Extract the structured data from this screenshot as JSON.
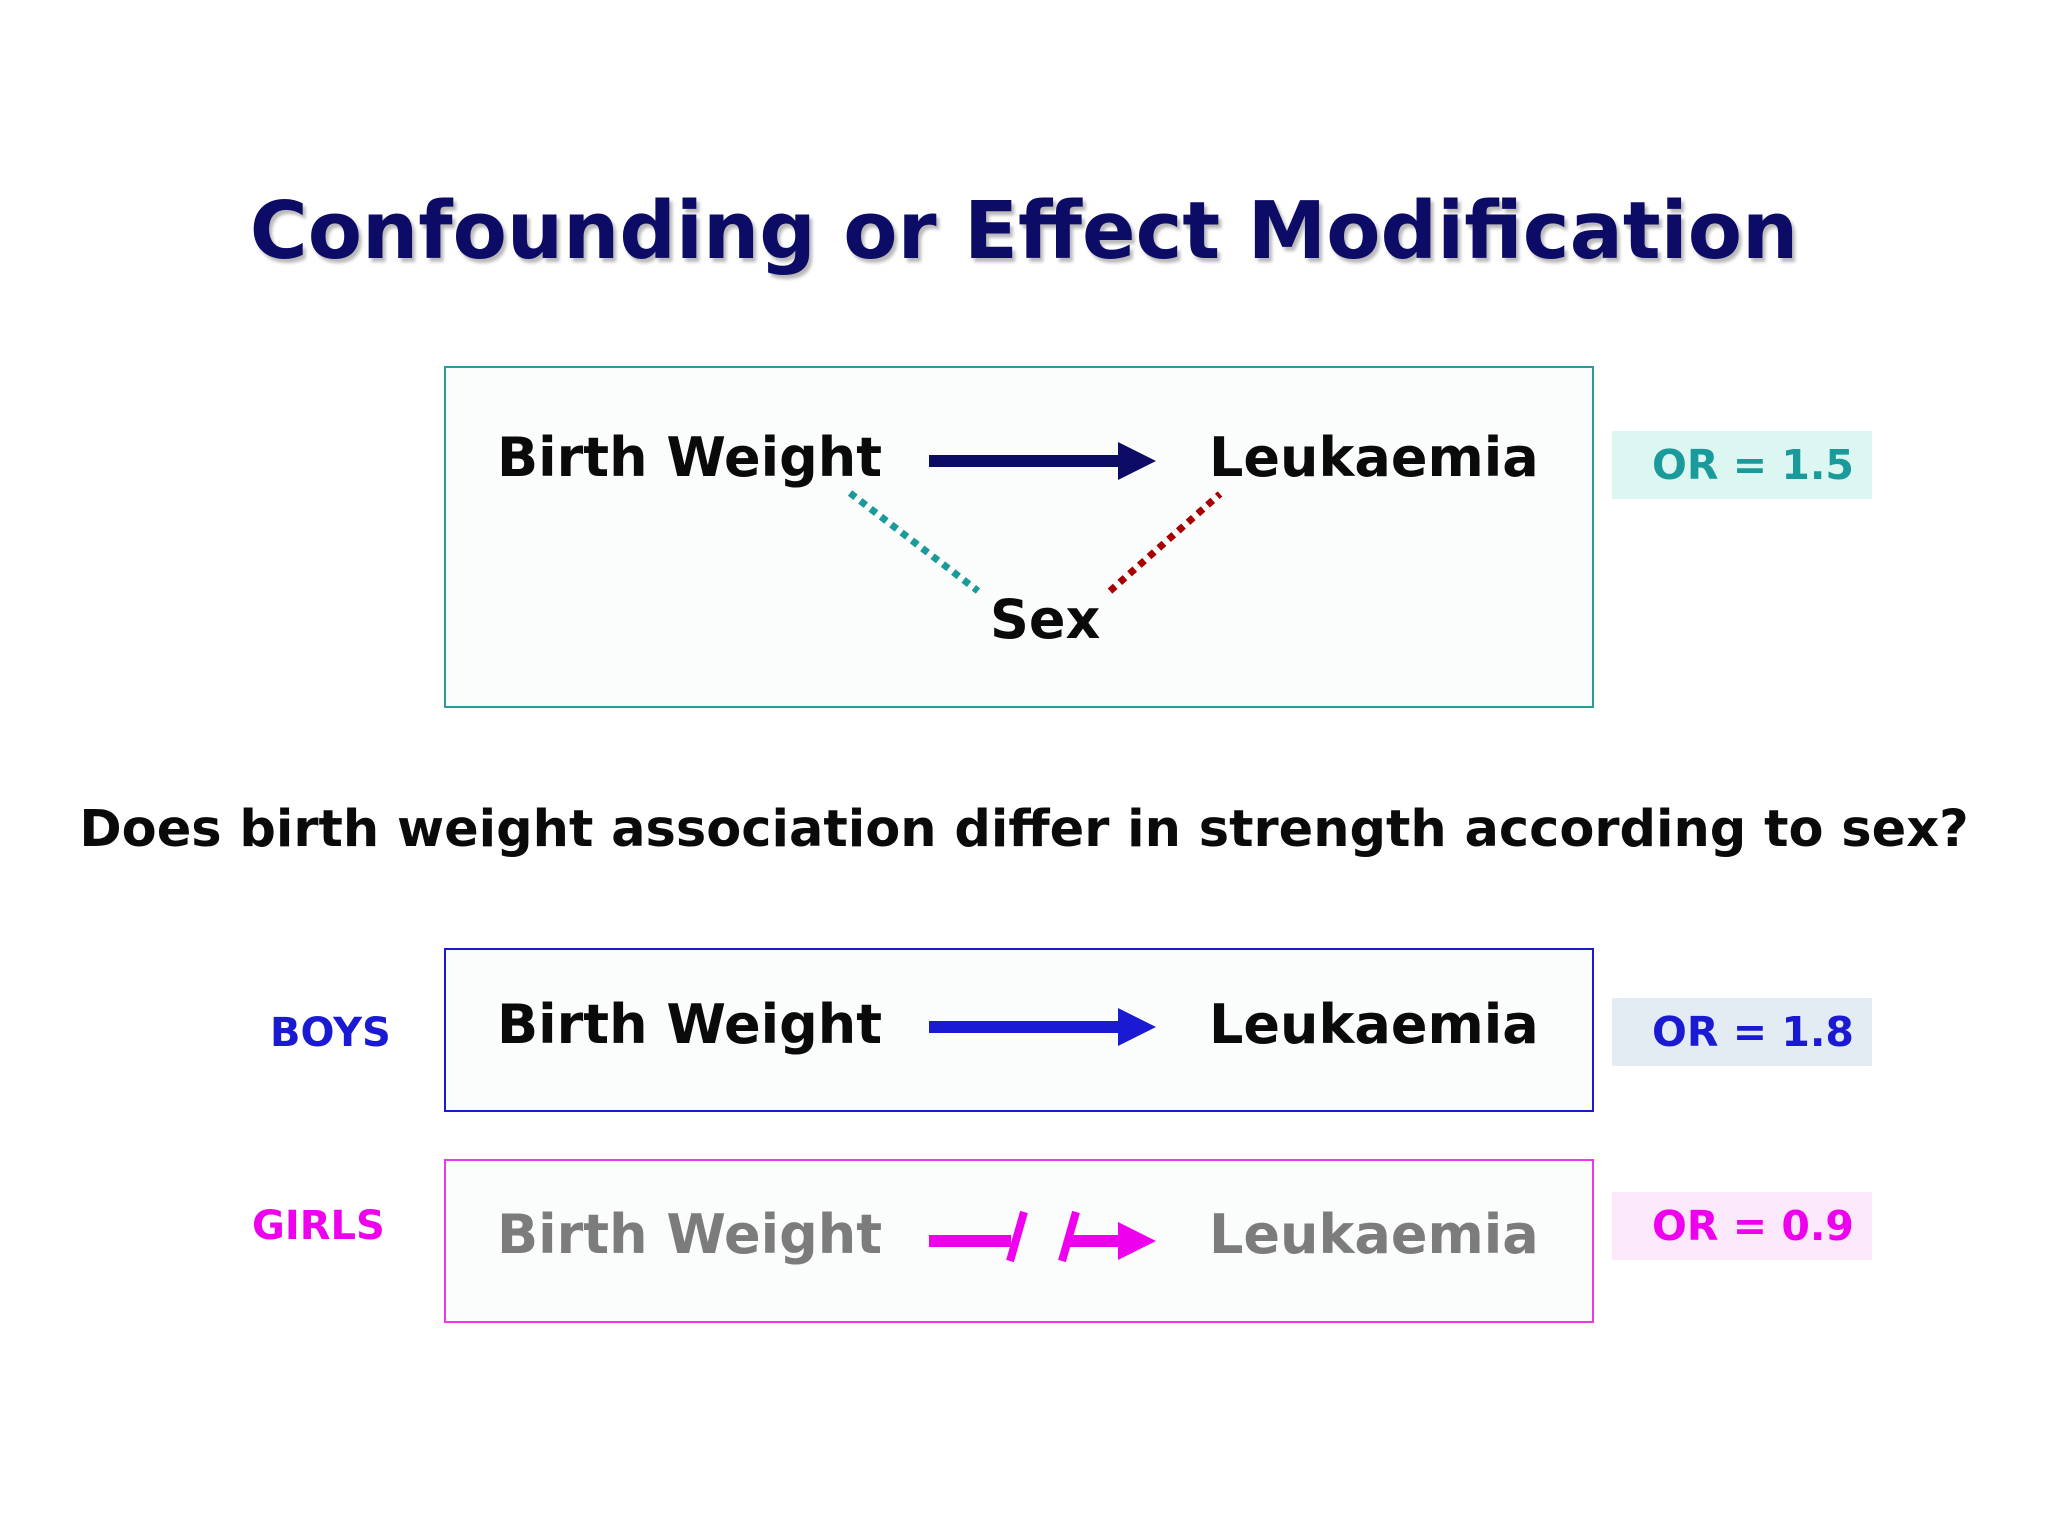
{
  "title": "Confounding or Effect Modification",
  "question": "Does birth weight association differ in strength according to sex?",
  "colors": {
    "title": "#0c0c66",
    "overall": "#2a9c9a",
    "overall_arrow": "#0c0c66",
    "confounder_exposure_link": "#1a9a9a",
    "confounder_outcome_link": "#a80000",
    "boys": "#1a1ad2",
    "girls": "#ee00ee",
    "girls_text": "#7c7c7c"
  },
  "overall": {
    "exposure": "Birth Weight",
    "outcome": "Leukaemia",
    "confounder": "Sex",
    "odds_ratio": "OR = 1.5"
  },
  "strata": [
    {
      "label": "BOYS",
      "exposure": "Birth Weight",
      "outcome": "Leukaemia",
      "odds_ratio": "OR = 1.8",
      "arrow": "solid"
    },
    {
      "label": "GIRLS",
      "exposure": "Birth Weight",
      "outcome": "Leukaemia",
      "odds_ratio": "OR = 0.9",
      "arrow": "broken"
    }
  ]
}
